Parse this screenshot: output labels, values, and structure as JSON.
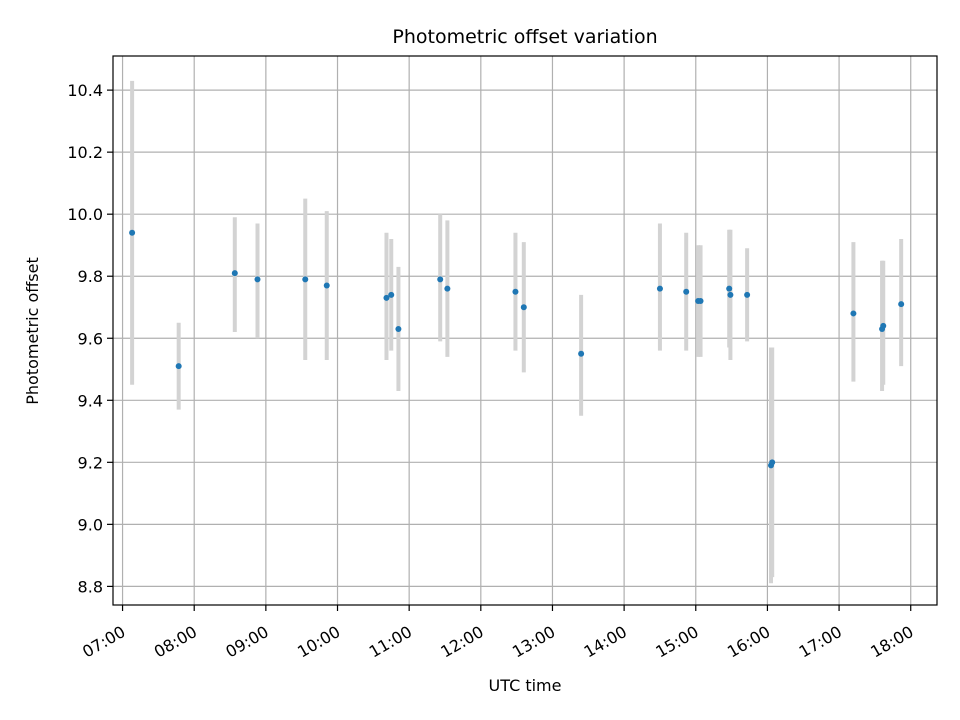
{
  "chart_data": {
    "type": "scatter",
    "title": "Photometric offset variation",
    "xlabel": "UTC time",
    "ylabel": "Photometric offset",
    "x_ticks": [
      "07:00",
      "08:00",
      "09:00",
      "10:00",
      "11:00",
      "12:00",
      "13:00",
      "14:00",
      "15:00",
      "16:00",
      "17:00",
      "18:00"
    ],
    "y_ticks": [
      "8.8",
      "9.0",
      "9.2",
      "9.4",
      "9.6",
      "9.8",
      "10.0",
      "10.2",
      "10.4"
    ],
    "xlim": [
      "06:52",
      "18:22"
    ],
    "ylim": [
      8.74,
      10.51
    ],
    "grid": true,
    "colors": {
      "points": "#1f77b4",
      "errorbars": "#d3d3d3",
      "grid": "#b0b0b0"
    },
    "series": [
      {
        "points": [
          {
            "x": "07:08",
            "y": 9.94,
            "lo": 9.45,
            "hi": 10.43
          },
          {
            "x": "07:47",
            "y": 9.51,
            "lo": 9.37,
            "hi": 9.65
          },
          {
            "x": "08:34",
            "y": 9.81,
            "lo": 9.62,
            "hi": 9.99
          },
          {
            "x": "08:53",
            "y": 9.79,
            "lo": 9.6,
            "hi": 9.97
          },
          {
            "x": "09:33",
            "y": 9.79,
            "lo": 9.53,
            "hi": 10.05
          },
          {
            "x": "09:51",
            "y": 9.77,
            "lo": 9.53,
            "hi": 10.01
          },
          {
            "x": "10:41",
            "y": 9.73,
            "lo": 9.53,
            "hi": 9.94
          },
          {
            "x": "10:45",
            "y": 9.74,
            "lo": 9.56,
            "hi": 9.92
          },
          {
            "x": "10:51",
            "y": 9.63,
            "lo": 9.43,
            "hi": 9.83
          },
          {
            "x": "11:26",
            "y": 9.79,
            "lo": 9.59,
            "hi": 10.0
          },
          {
            "x": "11:32",
            "y": 9.76,
            "lo": 9.54,
            "hi": 9.98
          },
          {
            "x": "12:29",
            "y": 9.75,
            "lo": 9.56,
            "hi": 9.94
          },
          {
            "x": "12:36",
            "y": 9.7,
            "lo": 9.49,
            "hi": 9.91
          },
          {
            "x": "13:24",
            "y": 9.55,
            "lo": 9.35,
            "hi": 9.74
          },
          {
            "x": "14:30",
            "y": 9.76,
            "lo": 9.56,
            "hi": 9.97
          },
          {
            "x": "14:52",
            "y": 9.75,
            "lo": 9.56,
            "hi": 9.94
          },
          {
            "x": "15:02",
            "y": 9.72,
            "lo": 9.54,
            "hi": 9.9
          },
          {
            "x": "15:04",
            "y": 9.72,
            "lo": 9.54,
            "hi": 9.9
          },
          {
            "x": "15:28",
            "y": 9.76,
            "lo": 9.57,
            "hi": 9.95
          },
          {
            "x": "15:29",
            "y": 9.74,
            "lo": 9.53,
            "hi": 9.95
          },
          {
            "x": "15:43",
            "y": 9.74,
            "lo": 9.59,
            "hi": 9.89
          },
          {
            "x": "16:03",
            "y": 9.19,
            "lo": 8.81,
            "hi": 9.57
          },
          {
            "x": "16:04",
            "y": 9.2,
            "lo": 8.83,
            "hi": 9.57
          },
          {
            "x": "17:12",
            "y": 9.68,
            "lo": 9.46,
            "hi": 9.91
          },
          {
            "x": "17:36",
            "y": 9.63,
            "lo": 9.43,
            "hi": 9.85
          },
          {
            "x": "17:37",
            "y": 9.64,
            "lo": 9.45,
            "hi": 9.85
          },
          {
            "x": "17:52",
            "y": 9.71,
            "lo": 9.51,
            "hi": 9.92
          }
        ]
      }
    ]
  }
}
